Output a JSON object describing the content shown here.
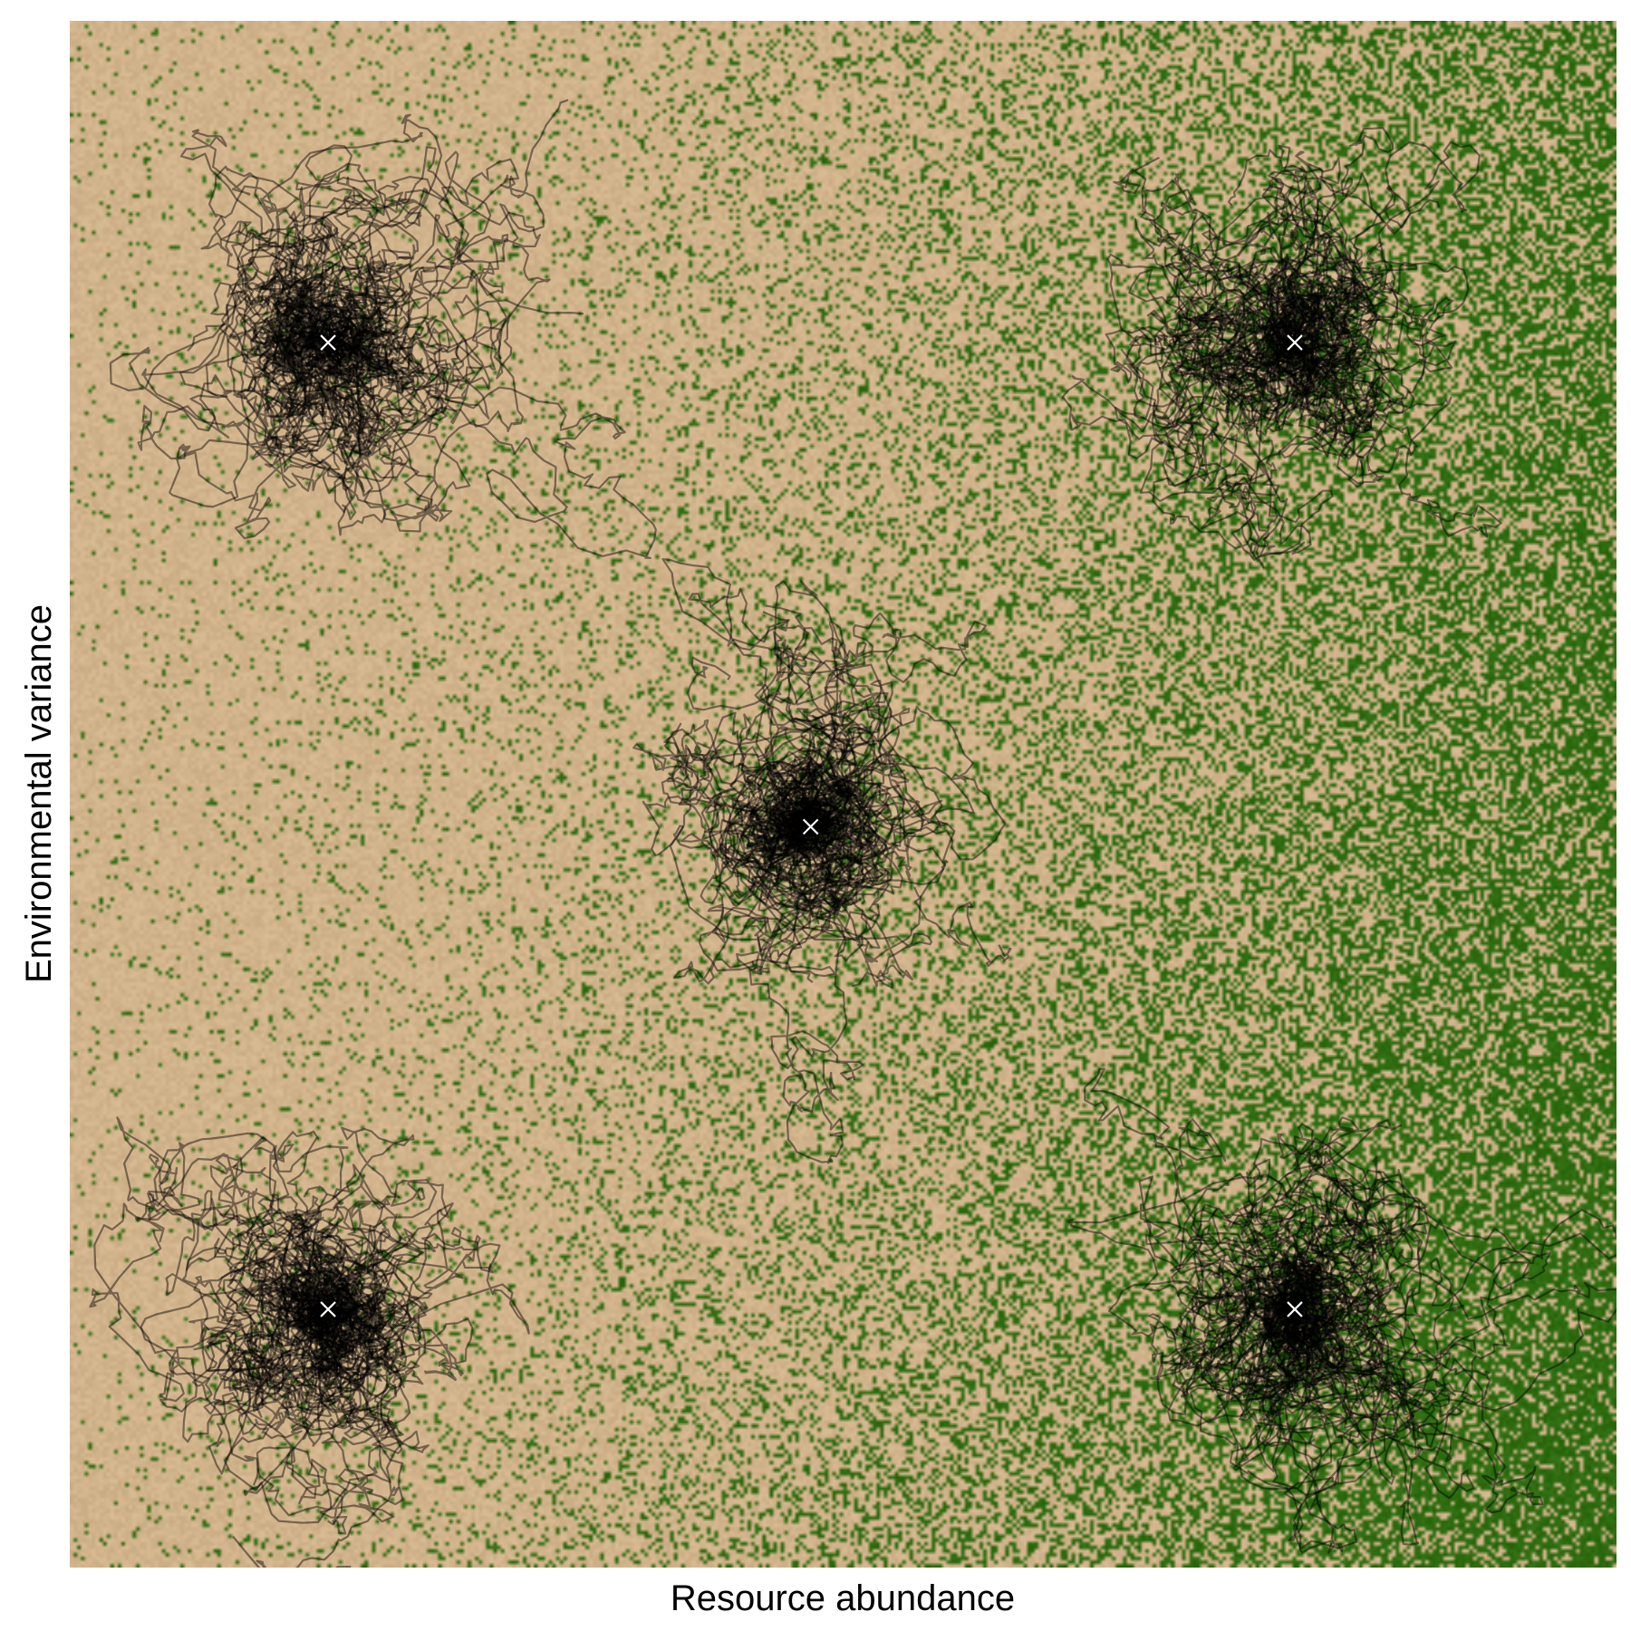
{
  "chart_data": {
    "type": "scatter",
    "title": "",
    "xlabel": "Resource abundance",
    "ylabel": "Environmental variance",
    "xlim": [
      0,
      1
    ],
    "ylim": [
      0,
      1
    ],
    "grid": false,
    "legend": "none",
    "tick_labels": false,
    "background": {
      "kind": "noisy-gradient",
      "low_color": "#D2B48C",
      "high_color": "#2E6B10"
    },
    "centers": [
      {
        "x": 0.167,
        "y": 0.792,
        "spread": 0.085
      },
      {
        "x": 0.792,
        "y": 0.792,
        "spread": 0.05
      },
      {
        "x": 0.479,
        "y": 0.479,
        "spread": 0.06
      },
      {
        "x": 0.167,
        "y": 0.167,
        "spread": 0.08
      },
      {
        "x": 0.792,
        "y": 0.167,
        "spread": 0.05
      }
    ],
    "trajectories_per_center": 40,
    "trajectory_color": "#000000",
    "marker": {
      "symbol": "x",
      "color": "#FFFFFF"
    }
  }
}
